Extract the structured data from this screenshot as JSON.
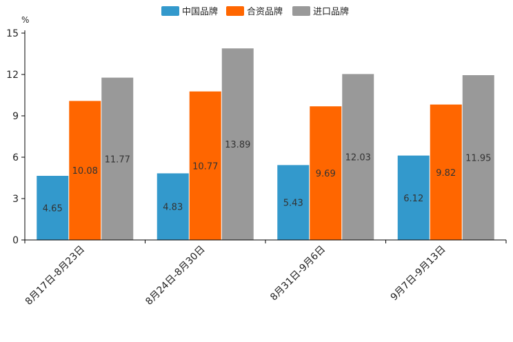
{
  "chart_data": {
    "type": "bar",
    "title": "",
    "xlabel": "",
    "ylabel": "%",
    "ylim": [
      0,
      15
    ],
    "yticks": [
      0,
      3,
      6,
      9,
      12,
      15
    ],
    "grid": false,
    "legend_position": "top-center",
    "categories": [
      "8月17日-8月23日",
      "8月24日-8月30日",
      "8月31日-9月6日",
      "9月7日-9月13日"
    ],
    "series": [
      {
        "name": "中国品牌",
        "color": "#3399cc",
        "values": [
          4.65,
          4.83,
          5.43,
          6.12
        ]
      },
      {
        "name": "合资品牌",
        "color": "#ff6600",
        "values": [
          10.08,
          10.77,
          9.69,
          9.82
        ]
      },
      {
        "name": "进口品牌",
        "color": "#999999",
        "values": [
          11.77,
          13.89,
          12.03,
          11.95
        ]
      }
    ]
  }
}
